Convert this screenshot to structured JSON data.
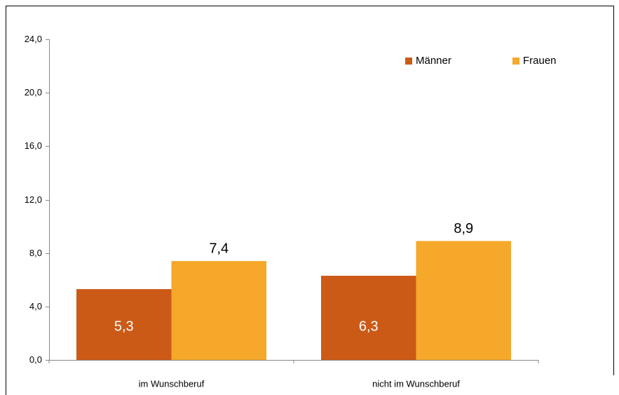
{
  "chart_data": {
    "type": "bar",
    "categories": [
      "im Wunschberuf",
      "nicht im Wunschberuf"
    ],
    "series": [
      {
        "name": "Männer",
        "color": "#cc5a17",
        "values": [
          5.3,
          6.3
        ],
        "value_labels": [
          "5,3",
          "6,3"
        ]
      },
      {
        "name": "Frauen",
        "color": "#f5a82a",
        "values": [
          7.4,
          8.9
        ],
        "value_labels": [
          "7,4",
          "8,9"
        ]
      }
    ],
    "ylim": [
      0,
      24
    ],
    "yticks": [
      {
        "value": 0,
        "label": "0,0"
      },
      {
        "value": 4,
        "label": "4,0"
      },
      {
        "value": 8,
        "label": "8,0"
      },
      {
        "value": 12,
        "label": "12,0"
      },
      {
        "value": 16,
        "label": "16,0"
      },
      {
        "value": 20,
        "label": "20,0"
      },
      {
        "value": 24,
        "label": "24,0"
      }
    ],
    "grid": false,
    "legend": "top-right"
  }
}
